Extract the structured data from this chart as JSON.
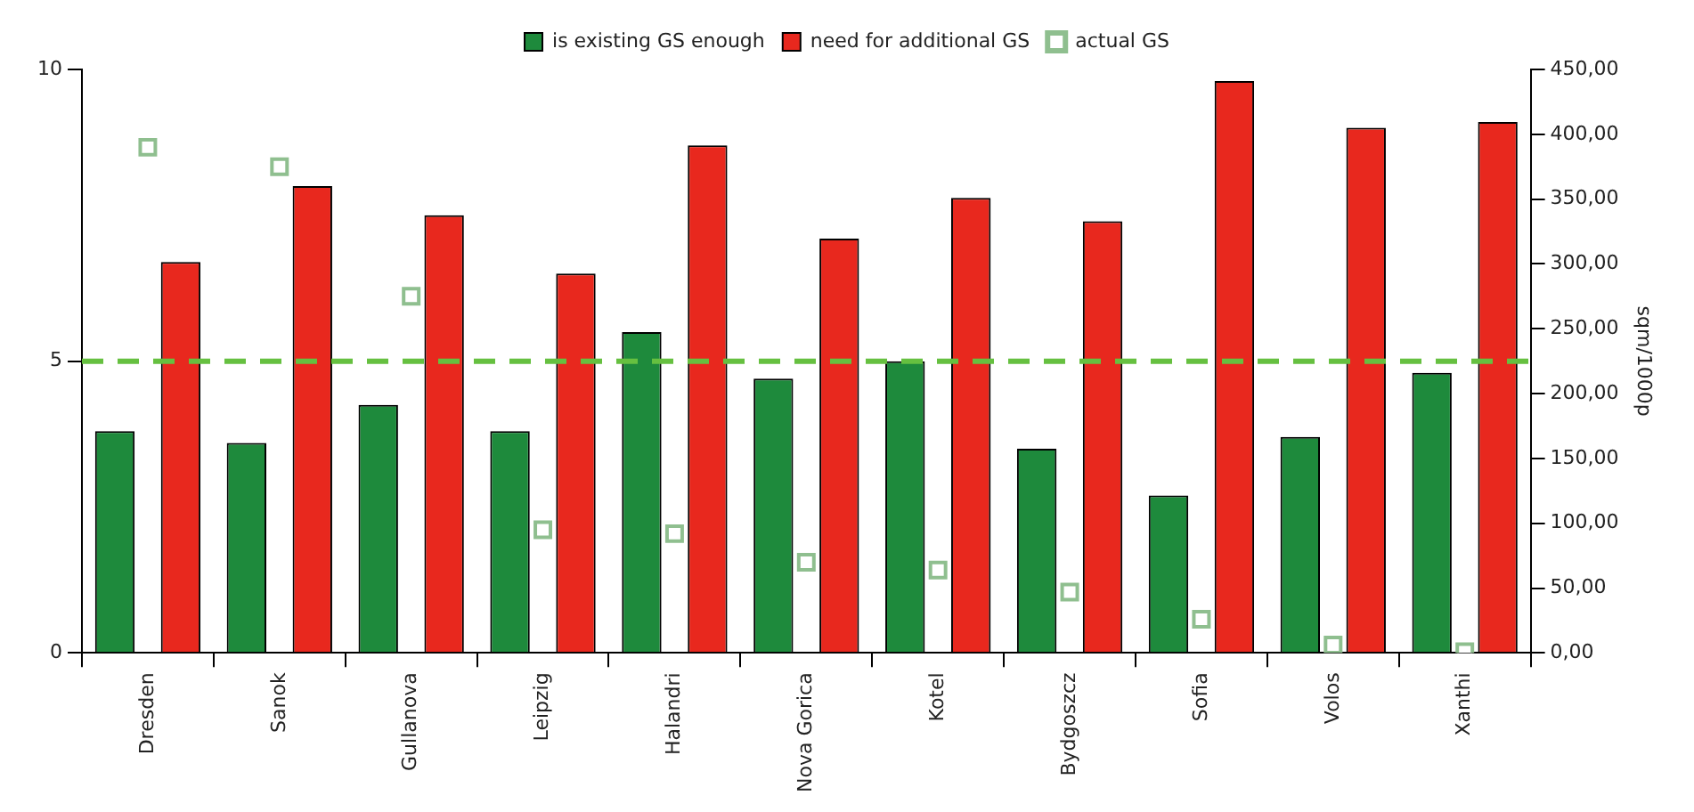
{
  "chart_data": {
    "type": "bar",
    "y2label": "sqm/1000p",
    "categories": [
      "Dresden",
      "Sanok",
      "Gullanova",
      "Leipzig",
      "Halandri",
      "Nova Gorica",
      "Kotel",
      "Bydgoszcz",
      "Sofia",
      "Volos",
      "Xanthi"
    ],
    "series": [
      {
        "name": "is existing GS enough",
        "color": "#1e8a3c",
        "values": [
          3.8,
          3.6,
          4.25,
          3.8,
          5.5,
          4.7,
          5.0,
          3.5,
          2.7,
          3.7,
          4.8
        ]
      },
      {
        "name": "need for additional GS",
        "color": "#e8281e",
        "values": [
          6.7,
          8.0,
          7.5,
          6.5,
          8.7,
          7.1,
          7.8,
          7.4,
          9.8,
          9.0,
          9.1
        ]
      },
      {
        "name": "actual GS",
        "type": "scatter",
        "axis": "y2",
        "marker": "square",
        "color": "#8fbf8f",
        "values": [
          390,
          375,
          275,
          95,
          92,
          70,
          64,
          47,
          26,
          6,
          1
        ]
      }
    ],
    "ylim": [
      0,
      10
    ],
    "yticks": [
      0,
      5,
      10
    ],
    "y2lim": [
      0,
      450
    ],
    "y2ticks": [
      {
        "value": 0,
        "label": "0,00"
      },
      {
        "value": 50,
        "label": "50,00"
      },
      {
        "value": 100,
        "label": "100,00"
      },
      {
        "value": 150,
        "label": "150,00"
      },
      {
        "value": 200,
        "label": "200,00"
      },
      {
        "value": 250,
        "label": "250,00"
      },
      {
        "value": 300,
        "label": "300,00"
      },
      {
        "value": 350,
        "label": "350,00"
      },
      {
        "value": 400,
        "label": "400,00"
      },
      {
        "value": 450,
        "label": "450,00"
      }
    ],
    "ref_lines": [
      {
        "axis": "y",
        "value": 5,
        "color": "#66c040",
        "line_style": "dashed"
      }
    ],
    "grid": false,
    "legend": "top"
  }
}
